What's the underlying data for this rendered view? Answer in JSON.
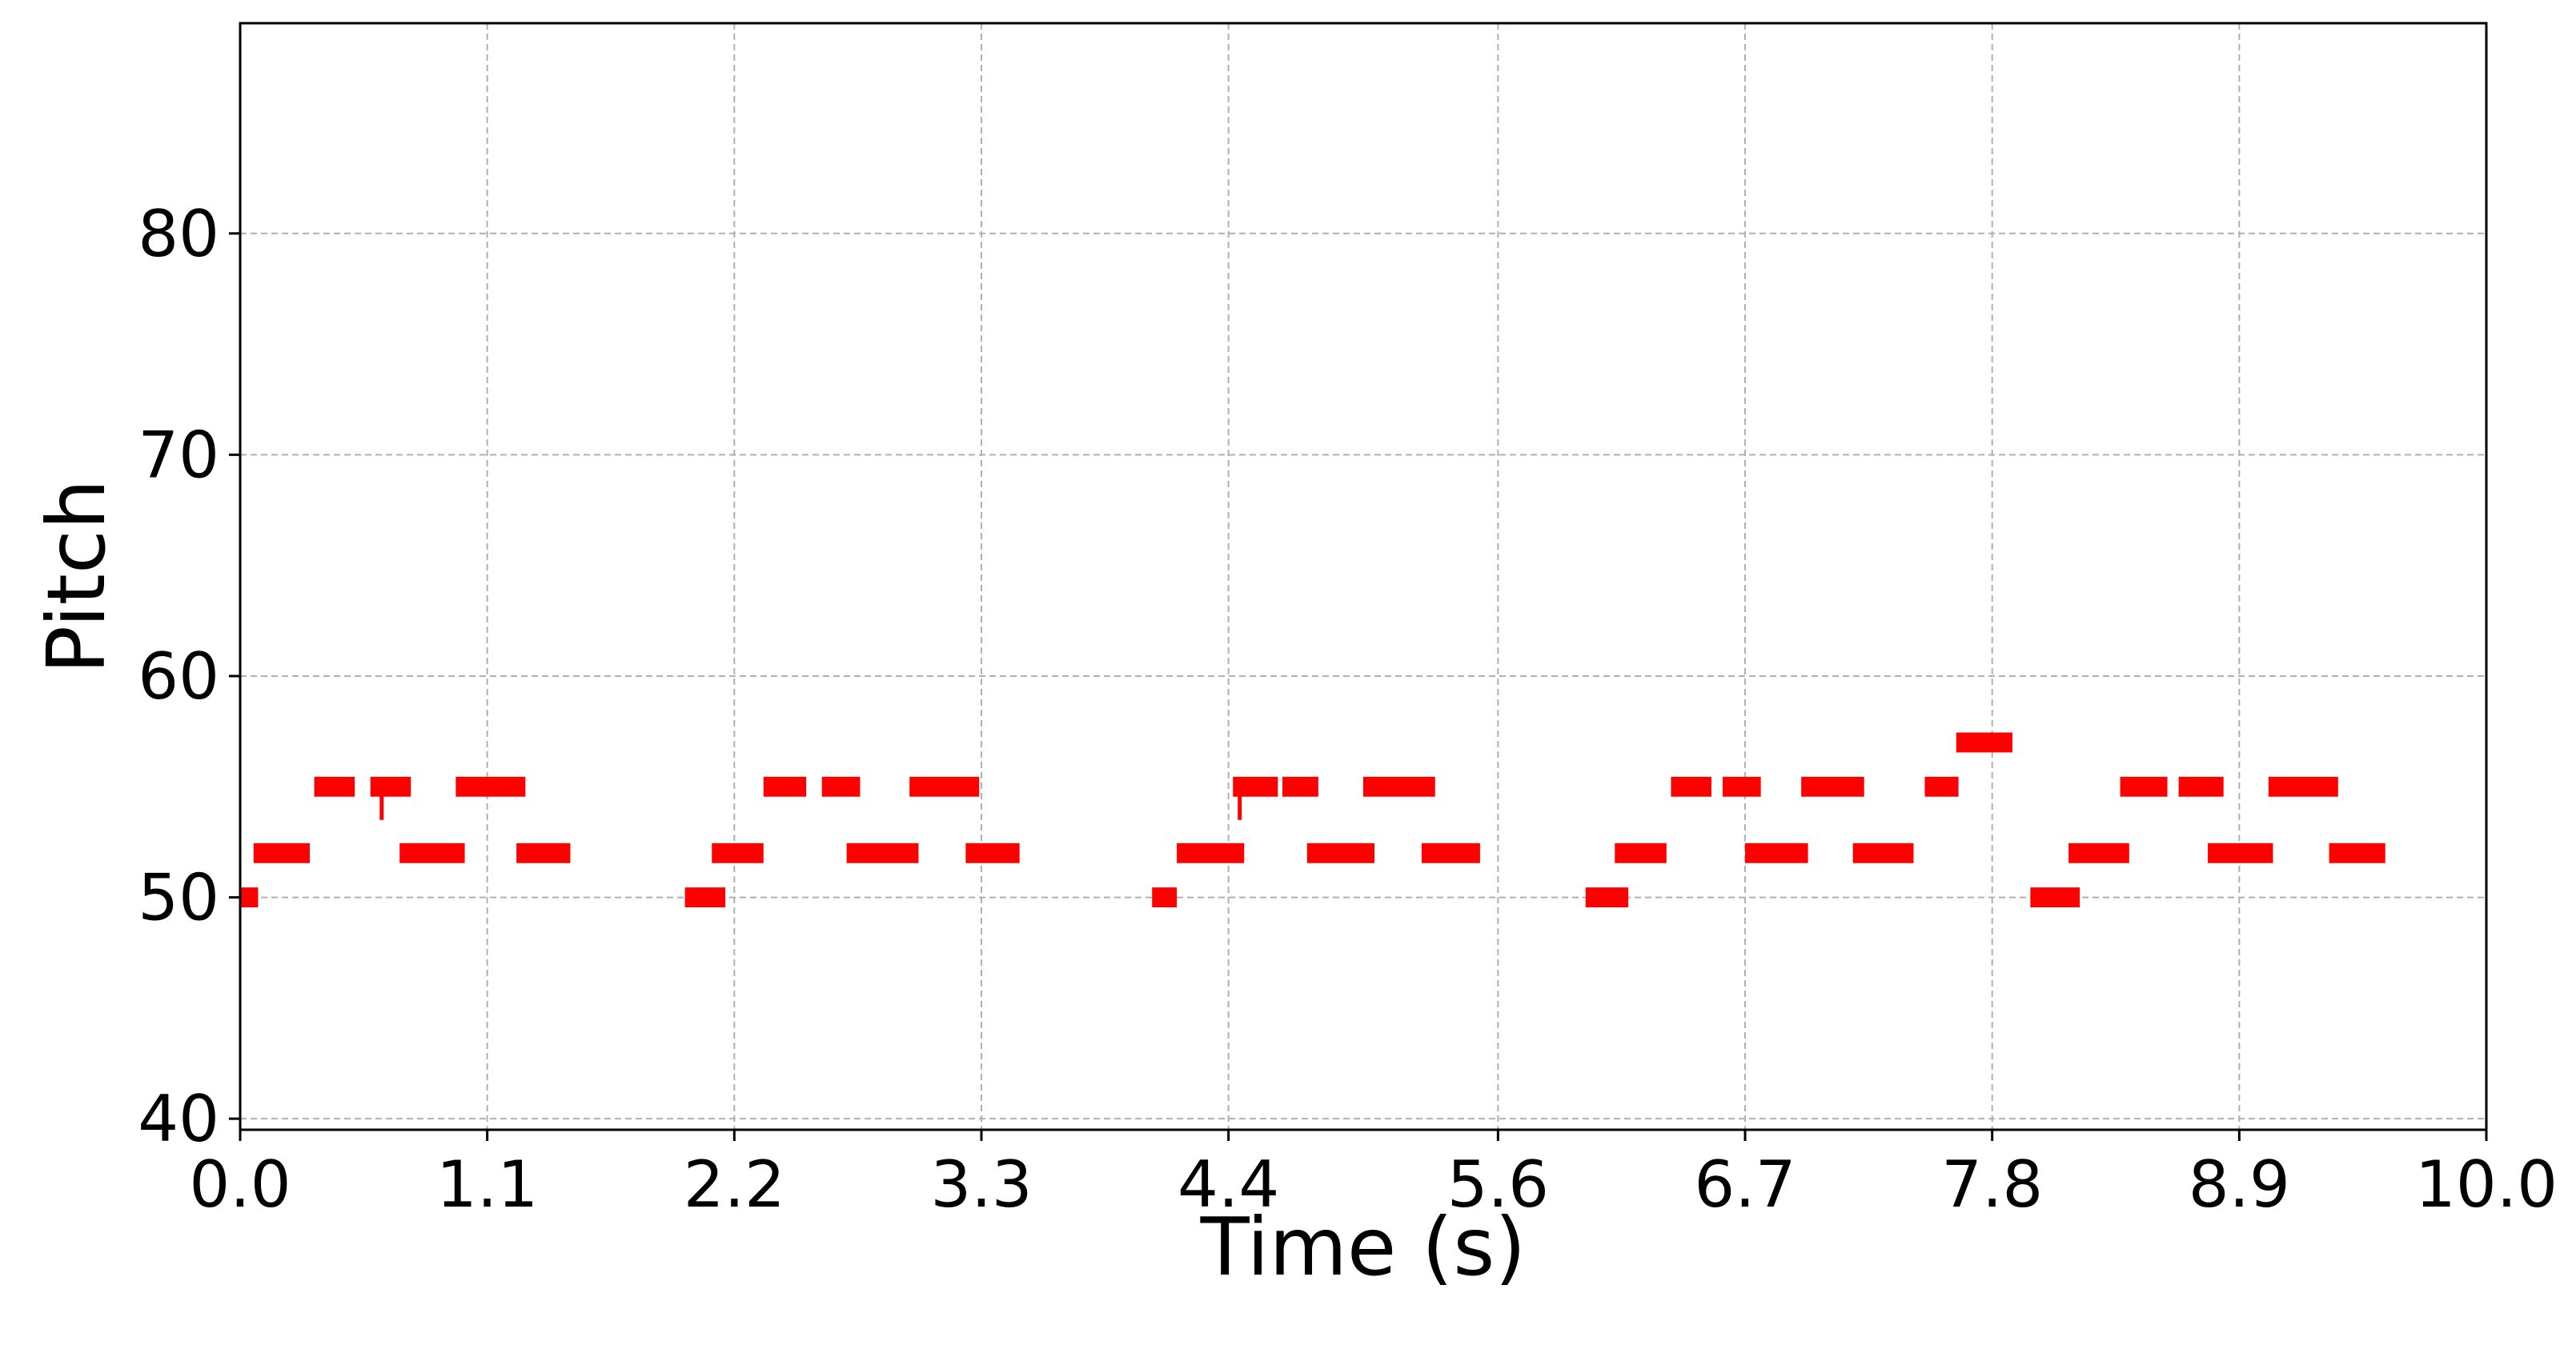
{
  "chart_data": {
    "type": "piano-roll",
    "xlabel": "Time (s)",
    "ylabel": "Pitch",
    "xlim": [
      0.0,
      10.0
    ],
    "ylim": [
      39.5,
      89.5
    ],
    "x_ticks": [
      0.0,
      1.1,
      2.2,
      3.3,
      4.4,
      5.6,
      6.7,
      7.8,
      8.9,
      10.0
    ],
    "x_tick_labels": [
      "0.0",
      "1.1",
      "2.2",
      "3.3",
      "4.4",
      "5.6",
      "6.7",
      "7.8",
      "8.9",
      "10.0"
    ],
    "y_ticks": [
      40,
      50,
      60,
      70,
      80
    ],
    "y_tick_labels": [
      "40",
      "50",
      "60",
      "70",
      "80"
    ],
    "grid": true,
    "note_color": "#ff0000",
    "notes": [
      {
        "start": 0.0,
        "end": 0.08,
        "pitch": 50
      },
      {
        "start": 0.06,
        "end": 0.31,
        "pitch": 52
      },
      {
        "start": 0.33,
        "end": 0.51,
        "pitch": 55
      },
      {
        "start": 0.58,
        "end": 0.76,
        "pitch": 55
      },
      {
        "start": 0.71,
        "end": 1.0,
        "pitch": 52
      },
      {
        "start": 0.96,
        "end": 1.27,
        "pitch": 55
      },
      {
        "start": 1.23,
        "end": 1.47,
        "pitch": 52
      },
      {
        "start": 1.98,
        "end": 2.16,
        "pitch": 50
      },
      {
        "start": 2.1,
        "end": 2.33,
        "pitch": 52
      },
      {
        "start": 2.33,
        "end": 2.52,
        "pitch": 55
      },
      {
        "start": 2.59,
        "end": 2.76,
        "pitch": 55
      },
      {
        "start": 2.7,
        "end": 3.02,
        "pitch": 52
      },
      {
        "start": 2.98,
        "end": 3.29,
        "pitch": 55
      },
      {
        "start": 3.23,
        "end": 3.47,
        "pitch": 52
      },
      {
        "start": 4.06,
        "end": 4.17,
        "pitch": 50
      },
      {
        "start": 4.17,
        "end": 4.47,
        "pitch": 52
      },
      {
        "start": 4.42,
        "end": 4.62,
        "pitch": 55
      },
      {
        "start": 4.64,
        "end": 4.8,
        "pitch": 55
      },
      {
        "start": 4.75,
        "end": 5.05,
        "pitch": 52
      },
      {
        "start": 5.0,
        "end": 5.32,
        "pitch": 55
      },
      {
        "start": 5.26,
        "end": 5.52,
        "pitch": 52
      },
      {
        "start": 5.99,
        "end": 6.18,
        "pitch": 50
      },
      {
        "start": 6.12,
        "end": 6.35,
        "pitch": 52
      },
      {
        "start": 6.37,
        "end": 6.55,
        "pitch": 55
      },
      {
        "start": 6.6,
        "end": 6.77,
        "pitch": 55
      },
      {
        "start": 6.7,
        "end": 6.98,
        "pitch": 52
      },
      {
        "start": 6.95,
        "end": 7.23,
        "pitch": 55
      },
      {
        "start": 7.18,
        "end": 7.45,
        "pitch": 52
      },
      {
        "start": 7.5,
        "end": 7.65,
        "pitch": 55
      },
      {
        "start": 7.64,
        "end": 7.89,
        "pitch": 57
      },
      {
        "start": 7.97,
        "end": 8.19,
        "pitch": 50
      },
      {
        "start": 8.14,
        "end": 8.41,
        "pitch": 52
      },
      {
        "start": 8.37,
        "end": 8.58,
        "pitch": 55
      },
      {
        "start": 8.63,
        "end": 8.83,
        "pitch": 55
      },
      {
        "start": 8.76,
        "end": 9.05,
        "pitch": 52
      },
      {
        "start": 9.03,
        "end": 9.34,
        "pitch": 55
      },
      {
        "start": 9.3,
        "end": 9.55,
        "pitch": 52
      }
    ],
    "pitch_bends": [
      {
        "time": 0.63,
        "from": 55,
        "to": 53.5
      },
      {
        "time": 4.45,
        "from": 55,
        "to": 53.5
      }
    ]
  }
}
